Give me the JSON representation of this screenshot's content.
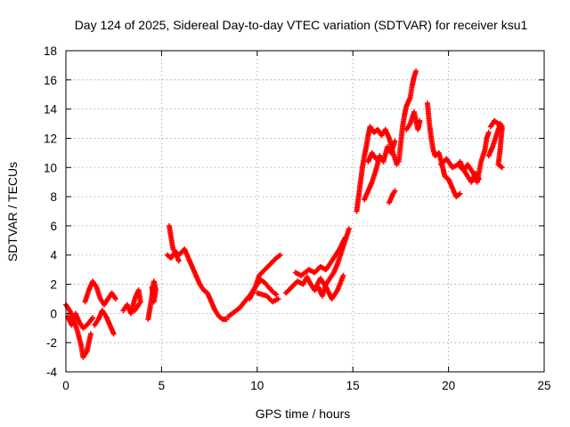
{
  "chart_data": {
    "type": "scatter",
    "title": "Day 124 of 2025, Sidereal Day-to-day VTEC variation (SDTVAR) for receiver ksu1",
    "xlabel": "GPS time / hours",
    "ylabel": "SDTVAR / TECUs",
    "xlim": [
      0,
      25
    ],
    "ylim": [
      -4,
      18
    ],
    "x_ticks": [
      0,
      5,
      10,
      15,
      20,
      25
    ],
    "y_ticks": [
      -4,
      -2,
      0,
      2,
      4,
      6,
      8,
      10,
      12,
      14,
      16,
      18
    ],
    "grid": true,
    "marker": "plus",
    "series": [
      {
        "name": "SDTVAR",
        "color": "#ff0000",
        "segments": [
          [
            [
              0.0,
              0.6
            ],
            [
              0.2,
              0.2
            ],
            [
              0.4,
              -0.4
            ],
            [
              0.6,
              -1.2
            ],
            [
              0.8,
              -2.2
            ],
            [
              0.9,
              -3.0
            ],
            [
              1.1,
              -2.6
            ],
            [
              1.3,
              -1.4
            ]
          ],
          [
            [
              0.1,
              -0.2
            ],
            [
              0.3,
              -0.8
            ],
            [
              0.5,
              0.0
            ],
            [
              0.7,
              -0.6
            ],
            [
              0.9,
              -1.0
            ],
            [
              1.1,
              -0.8
            ],
            [
              1.4,
              -0.3
            ]
          ],
          [
            [
              1.0,
              0.8
            ],
            [
              1.2,
              1.6
            ],
            [
              1.4,
              2.2
            ],
            [
              1.6,
              1.8
            ],
            [
              1.8,
              1.0
            ],
            [
              2.0,
              0.6
            ],
            [
              2.2,
              1.0
            ],
            [
              2.4,
              1.4
            ],
            [
              2.6,
              1.0
            ]
          ],
          [
            [
              1.5,
              -0.8
            ],
            [
              1.7,
              -0.4
            ],
            [
              1.9,
              0.2
            ],
            [
              2.1,
              -0.2
            ],
            [
              2.3,
              -0.8
            ],
            [
              2.5,
              -1.4
            ]
          ],
          [
            [
              3.0,
              0.2
            ],
            [
              3.2,
              0.6
            ],
            [
              3.4,
              0.0
            ],
            [
              3.6,
              1.0
            ],
            [
              3.8,
              1.6
            ],
            [
              3.9,
              0.8
            ],
            [
              3.6,
              0.2
            ]
          ],
          [
            [
              4.3,
              -0.4
            ],
            [
              4.4,
              0.4
            ],
            [
              4.5,
              1.2
            ],
            [
              4.6,
              2.2
            ],
            [
              4.7,
              1.6
            ],
            [
              4.6,
              0.8
            ],
            [
              4.5,
              1.8
            ]
          ],
          [
            [
              5.4,
              6.0
            ],
            [
              5.5,
              5.2
            ],
            [
              5.6,
              4.4
            ],
            [
              5.9,
              4.0
            ],
            [
              6.2,
              4.4
            ],
            [
              6.4,
              3.8
            ],
            [
              6.6,
              3.2
            ],
            [
              6.8,
              2.6
            ],
            [
              7.0,
              2.0
            ],
            [
              7.2,
              1.6
            ],
            [
              7.4,
              1.4
            ],
            [
              7.6,
              0.8
            ],
            [
              7.8,
              0.2
            ],
            [
              8.0,
              -0.2
            ],
            [
              8.2,
              -0.4
            ],
            [
              8.4,
              -0.4
            ]
          ],
          [
            [
              5.3,
              4.0
            ],
            [
              5.5,
              3.8
            ],
            [
              5.7,
              4.2
            ],
            [
              5.9,
              3.6
            ]
          ],
          [
            [
              8.5,
              -0.2
            ],
            [
              8.8,
              0.1
            ],
            [
              9.1,
              0.4
            ],
            [
              9.4,
              0.9
            ],
            [
              9.6,
              1.2
            ],
            [
              9.8,
              1.6
            ],
            [
              10.0,
              2.0
            ],
            [
              10.2,
              2.3
            ],
            [
              10.4,
              2.1
            ],
            [
              10.6,
              1.8
            ],
            [
              10.8,
              1.5
            ],
            [
              11.0,
              1.3
            ]
          ],
          [
            [
              9.6,
              1.0
            ],
            [
              9.9,
              1.8
            ],
            [
              10.1,
              2.6
            ],
            [
              10.4,
              3.0
            ],
            [
              10.7,
              3.4
            ],
            [
              11.0,
              3.8
            ],
            [
              11.2,
              4.0
            ]
          ],
          [
            [
              10.0,
              1.4
            ],
            [
              10.5,
              1.2
            ],
            [
              10.8,
              0.8
            ],
            [
              11.1,
              1.0
            ]
          ],
          [
            [
              11.5,
              1.4
            ],
            [
              11.8,
              1.8
            ],
            [
              12.1,
              2.2
            ],
            [
              12.4,
              2.0
            ],
            [
              12.6,
              2.5
            ],
            [
              12.8,
              2.0
            ],
            [
              13.0,
              1.6
            ],
            [
              13.2,
              1.8
            ],
            [
              13.4,
              1.2
            ],
            [
              13.6,
              2.0
            ],
            [
              13.8,
              2.4
            ],
            [
              14.0,
              2.8
            ],
            [
              14.2,
              3.4
            ],
            [
              14.4,
              4.2
            ],
            [
              14.6,
              5.0
            ],
            [
              14.8,
              5.8
            ]
          ],
          [
            [
              12.0,
              2.8
            ],
            [
              12.3,
              2.6
            ],
            [
              12.7,
              3.0
            ],
            [
              13.0,
              2.8
            ],
            [
              13.3,
              3.2
            ],
            [
              13.6,
              3.0
            ],
            [
              14.0,
              3.8
            ],
            [
              14.3,
              4.4
            ],
            [
              14.6,
              5.2
            ]
          ],
          [
            [
              13.0,
              1.6
            ],
            [
              13.3,
              2.4
            ],
            [
              13.6,
              1.8
            ],
            [
              13.9,
              1.0
            ],
            [
              14.2,
              1.6
            ],
            [
              14.5,
              2.6
            ]
          ],
          [
            [
              15.2,
              7.0
            ],
            [
              15.3,
              8.0
            ],
            [
              15.4,
              9.0
            ],
            [
              15.5,
              10.0
            ],
            [
              15.6,
              10.8
            ],
            [
              15.7,
              11.4
            ],
            [
              15.8,
              12.2
            ],
            [
              15.9,
              12.8
            ],
            [
              16.1,
              12.4
            ],
            [
              16.3,
              12.6
            ],
            [
              16.5,
              12.2
            ],
            [
              16.7,
              12.6
            ],
            [
              16.9,
              12.0
            ],
            [
              17.1,
              11.0
            ],
            [
              17.3,
              10.2
            ]
          ],
          [
            [
              15.6,
              7.8
            ],
            [
              15.8,
              8.4
            ],
            [
              16.0,
              9.0
            ],
            [
              16.2,
              9.8
            ],
            [
              16.4,
              10.8
            ],
            [
              16.6,
              10.4
            ],
            [
              16.8,
              11.4
            ],
            [
              17.0,
              11.0
            ],
            [
              17.2,
              11.8
            ]
          ],
          [
            [
              15.8,
              10.4
            ],
            [
              16.0,
              11.0
            ],
            [
              16.2,
              10.6
            ]
          ],
          [
            [
              16.9,
              7.6
            ],
            [
              17.1,
              8.2
            ],
            [
              17.2,
              8.4
            ]
          ],
          [
            [
              17.4,
              10.4
            ],
            [
              17.5,
              11.6
            ],
            [
              17.6,
              12.8
            ],
            [
              17.7,
              13.6
            ],
            [
              17.8,
              14.2
            ],
            [
              18.0,
              14.8
            ],
            [
              18.1,
              15.6
            ],
            [
              18.2,
              16.2
            ],
            [
              18.3,
              16.6
            ]
          ],
          [
            [
              17.8,
              12.6
            ],
            [
              18.0,
              13.0
            ],
            [
              18.2,
              13.8
            ],
            [
              18.4,
              12.6
            ],
            [
              18.5,
              13.2
            ]
          ],
          [
            [
              18.9,
              14.4
            ],
            [
              19.0,
              13.0
            ],
            [
              19.1,
              12.0
            ],
            [
              19.2,
              11.2
            ],
            [
              19.3,
              10.8
            ],
            [
              19.5,
              11.0
            ],
            [
              19.7,
              10.0
            ],
            [
              19.8,
              9.4
            ],
            [
              20.0,
              9.2
            ],
            [
              20.2,
              8.6
            ],
            [
              20.4,
              8.0
            ],
            [
              20.6,
              8.2
            ]
          ],
          [
            [
              19.6,
              10.2
            ],
            [
              19.9,
              10.6
            ],
            [
              20.2,
              10.0
            ],
            [
              20.5,
              10.2
            ],
            [
              20.8,
              9.8
            ],
            [
              21.0,
              10.2
            ],
            [
              21.3,
              9.6
            ],
            [
              21.5,
              9.0
            ],
            [
              21.7,
              10.4
            ],
            [
              21.9,
              11.2
            ],
            [
              22.0,
              12.0
            ],
            [
              22.1,
              12.4
            ]
          ],
          [
            [
              20.6,
              10.4
            ],
            [
              20.9,
              9.6
            ],
            [
              21.2,
              9.0
            ],
            [
              21.4,
              9.6
            ],
            [
              21.6,
              9.2
            ]
          ],
          [
            [
              22.1,
              10.8
            ],
            [
              22.3,
              11.4
            ],
            [
              22.5,
              12.2
            ],
            [
              22.7,
              13.0
            ],
            [
              22.8,
              12.8
            ],
            [
              22.7,
              11.2
            ],
            [
              22.6,
              10.2
            ],
            [
              22.8,
              10.0
            ]
          ],
          [
            [
              22.2,
              12.8
            ],
            [
              22.4,
              13.2
            ],
            [
              22.6,
              13.0
            ],
            [
              22.8,
              12.6
            ]
          ]
        ]
      }
    ]
  }
}
